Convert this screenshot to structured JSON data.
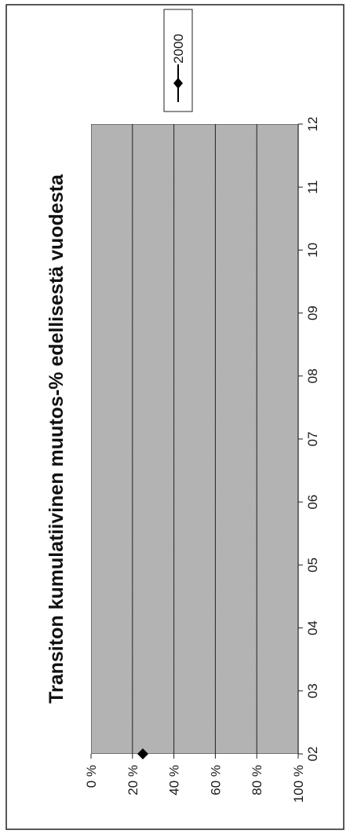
{
  "chart_data": {
    "type": "line",
    "title": "Transiton kumulatiivinen muutos-% edellisestä vuodesta",
    "xlabel": "",
    "ylabel": "",
    "categories": [
      "02",
      "03",
      "04",
      "05",
      "06",
      "07",
      "08",
      "09",
      "10",
      "11",
      "12"
    ],
    "y_ticks": [
      "0 %",
      "20 %",
      "40 %",
      "60 %",
      "80 %",
      "100 %"
    ],
    "ylim": [
      0,
      100
    ],
    "grid": true,
    "legend_position": "top-right",
    "orientation": "rotated-90-ccw",
    "plot_background": "#b8b8b8",
    "series": [
      {
        "name": "2000",
        "values": [
          25,
          null,
          null,
          null,
          null,
          null,
          null,
          null,
          null,
          null,
          null
        ],
        "marker": "diamond",
        "color": "#000000"
      }
    ]
  }
}
